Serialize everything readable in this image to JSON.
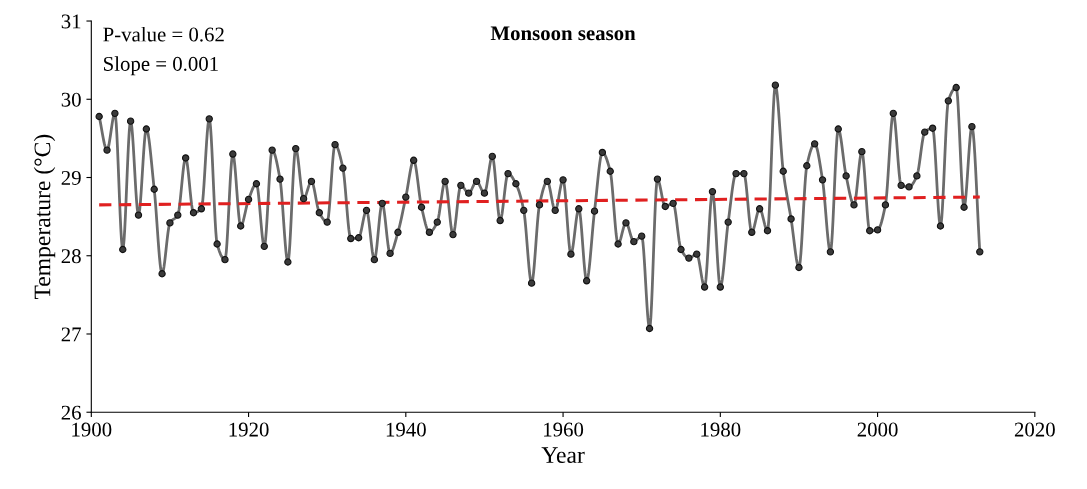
{
  "chart_data": {
    "type": "line",
    "title": "Monsoon season",
    "xlabel": "Year",
    "ylabel": "Temperature (°C)",
    "annotations": [
      "P-value = 0.62",
      "Slope = 0.001"
    ],
    "xlim": [
      1900,
      2020
    ],
    "xticks": [
      1900,
      1920,
      1940,
      1960,
      1980,
      2000,
      2020
    ],
    "ylim": [
      26,
      31
    ],
    "yticks": [
      26,
      27,
      28,
      29,
      30,
      31
    ],
    "grid": false,
    "legend": false,
    "series": [
      {
        "color": "#6b6b6b",
        "marker": "circle",
        "line_style": "solid",
        "x": [
          1901,
          1902,
          1903,
          1904,
          1905,
          1906,
          1907,
          1908,
          1909,
          1910,
          1911,
          1912,
          1913,
          1914,
          1915,
          1916,
          1917,
          1918,
          1919,
          1920,
          1921,
          1922,
          1923,
          1924,
          1925,
          1926,
          1927,
          1928,
          1929,
          1930,
          1931,
          1932,
          1933,
          1934,
          1935,
          1936,
          1937,
          1938,
          1939,
          1940,
          1941,
          1942,
          1943,
          1944,
          1945,
          1946,
          1947,
          1948,
          1949,
          1950,
          1951,
          1952,
          1953,
          1954,
          1955,
          1956,
          1957,
          1958,
          1959,
          1960,
          1961,
          1962,
          1963,
          1964,
          1965,
          1966,
          1967,
          1968,
          1969,
          1970,
          1971,
          1972,
          1973,
          1974,
          1975,
          1976,
          1977,
          1978,
          1979,
          1980,
          1981,
          1982,
          1983,
          1984,
          1985,
          1986,
          1987,
          1988,
          1989,
          1990,
          1991,
          1992,
          1993,
          1994,
          1995,
          1996,
          1997,
          1998,
          1999,
          2000,
          2001,
          2002,
          2003,
          2004,
          2005,
          2006,
          2007,
          2008,
          2009,
          2010,
          2011,
          2012,
          2013
        ],
        "values": [
          29.78,
          29.35,
          29.82,
          28.08,
          29.72,
          28.52,
          29.62,
          28.85,
          27.77,
          28.42,
          28.52,
          29.25,
          28.55,
          28.6,
          29.75,
          28.15,
          27.95,
          29.3,
          28.38,
          28.72,
          28.92,
          28.12,
          29.35,
          28.98,
          27.92,
          29.37,
          28.73,
          28.95,
          28.55,
          28.43,
          29.42,
          29.12,
          28.22,
          28.23,
          28.58,
          27.95,
          28.67,
          28.03,
          28.3,
          28.75,
          29.22,
          28.62,
          28.3,
          28.43,
          28.95,
          28.27,
          28.9,
          28.8,
          28.95,
          28.8,
          29.27,
          28.45,
          29.05,
          28.92,
          28.58,
          27.65,
          28.65,
          28.95,
          28.58,
          28.97,
          28.02,
          28.6,
          27.68,
          28.57,
          29.32,
          29.08,
          28.15,
          28.42,
          28.18,
          28.25,
          27.07,
          28.98,
          28.63,
          28.67,
          28.08,
          27.97,
          28.02,
          27.6,
          28.82,
          27.6,
          28.43,
          29.05,
          29.05,
          28.3,
          28.6,
          28.32,
          30.18,
          29.08,
          28.47,
          27.85,
          29.15,
          29.43,
          28.97,
          28.05,
          29.62,
          29.02,
          28.65,
          29.33,
          28.32,
          28.33,
          28.65,
          29.82,
          28.9,
          28.88,
          29.02,
          29.58,
          29.63,
          28.38,
          29.98,
          30.15,
          28.62,
          29.65,
          28.05
        ]
      },
      {
        "color": "#e02020",
        "marker": "none",
        "line_style": "dashed",
        "x": [
          1901,
          2013
        ],
        "values": [
          28.65,
          28.75
        ]
      }
    ]
  }
}
